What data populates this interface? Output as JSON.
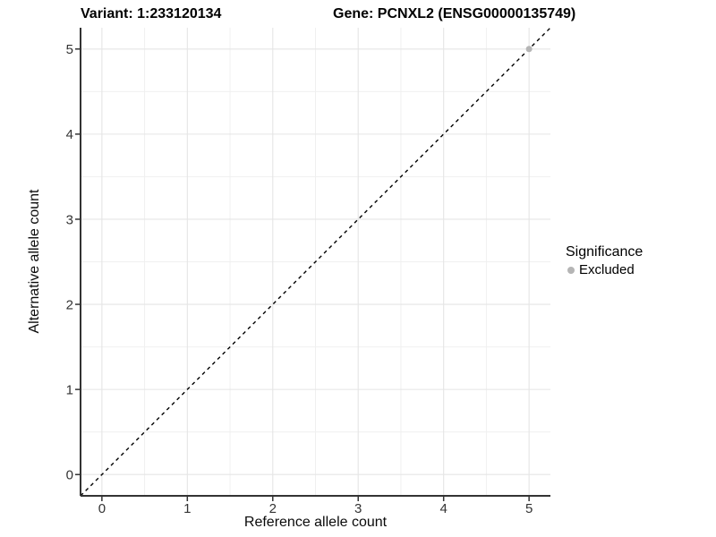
{
  "chart_data": {
    "type": "scatter",
    "title_left": "Variant: 1:233120134",
    "title_right": "Gene: PCNXL2 (ENSG00000135749)",
    "xlabel": "Reference allele count",
    "ylabel": "Alternative allele count",
    "xlim": [
      -0.25,
      5.25
    ],
    "ylim": [
      -0.25,
      5.25
    ],
    "x_ticks": [
      0,
      1,
      2,
      3,
      4,
      5
    ],
    "y_ticks": [
      0,
      1,
      2,
      3,
      4,
      5
    ],
    "x_minor_ticks": [
      0.5,
      1.5,
      2.5,
      3.5,
      4.5
    ],
    "y_minor_ticks": [
      0.5,
      1.5,
      2.5,
      3.5,
      4.5
    ],
    "grid": "major and minor, light gray on white panel",
    "reference_line": {
      "kind": "identity y=x",
      "style": "dashed",
      "color": "#000000",
      "x1": -0.25,
      "y1": -0.25,
      "x2": 5.25,
      "y2": 5.25
    },
    "series": [
      {
        "name": "Excluded",
        "color": "#b5b5b5",
        "points": [
          {
            "x": 5,
            "y": 5
          }
        ]
      }
    ],
    "legend": {
      "title": "Significance",
      "position": "right",
      "items": [
        {
          "label": "Excluded",
          "color": "#b5b5b5"
        }
      ]
    },
    "colors": {
      "panel_background": "#ffffff",
      "grid_major": "#e5e5e5",
      "grid_minor": "#f0f0f0",
      "axis_line": "#333333",
      "tick_mark": "#333333",
      "tick_label": "#333333",
      "title_text": "#000000"
    }
  }
}
